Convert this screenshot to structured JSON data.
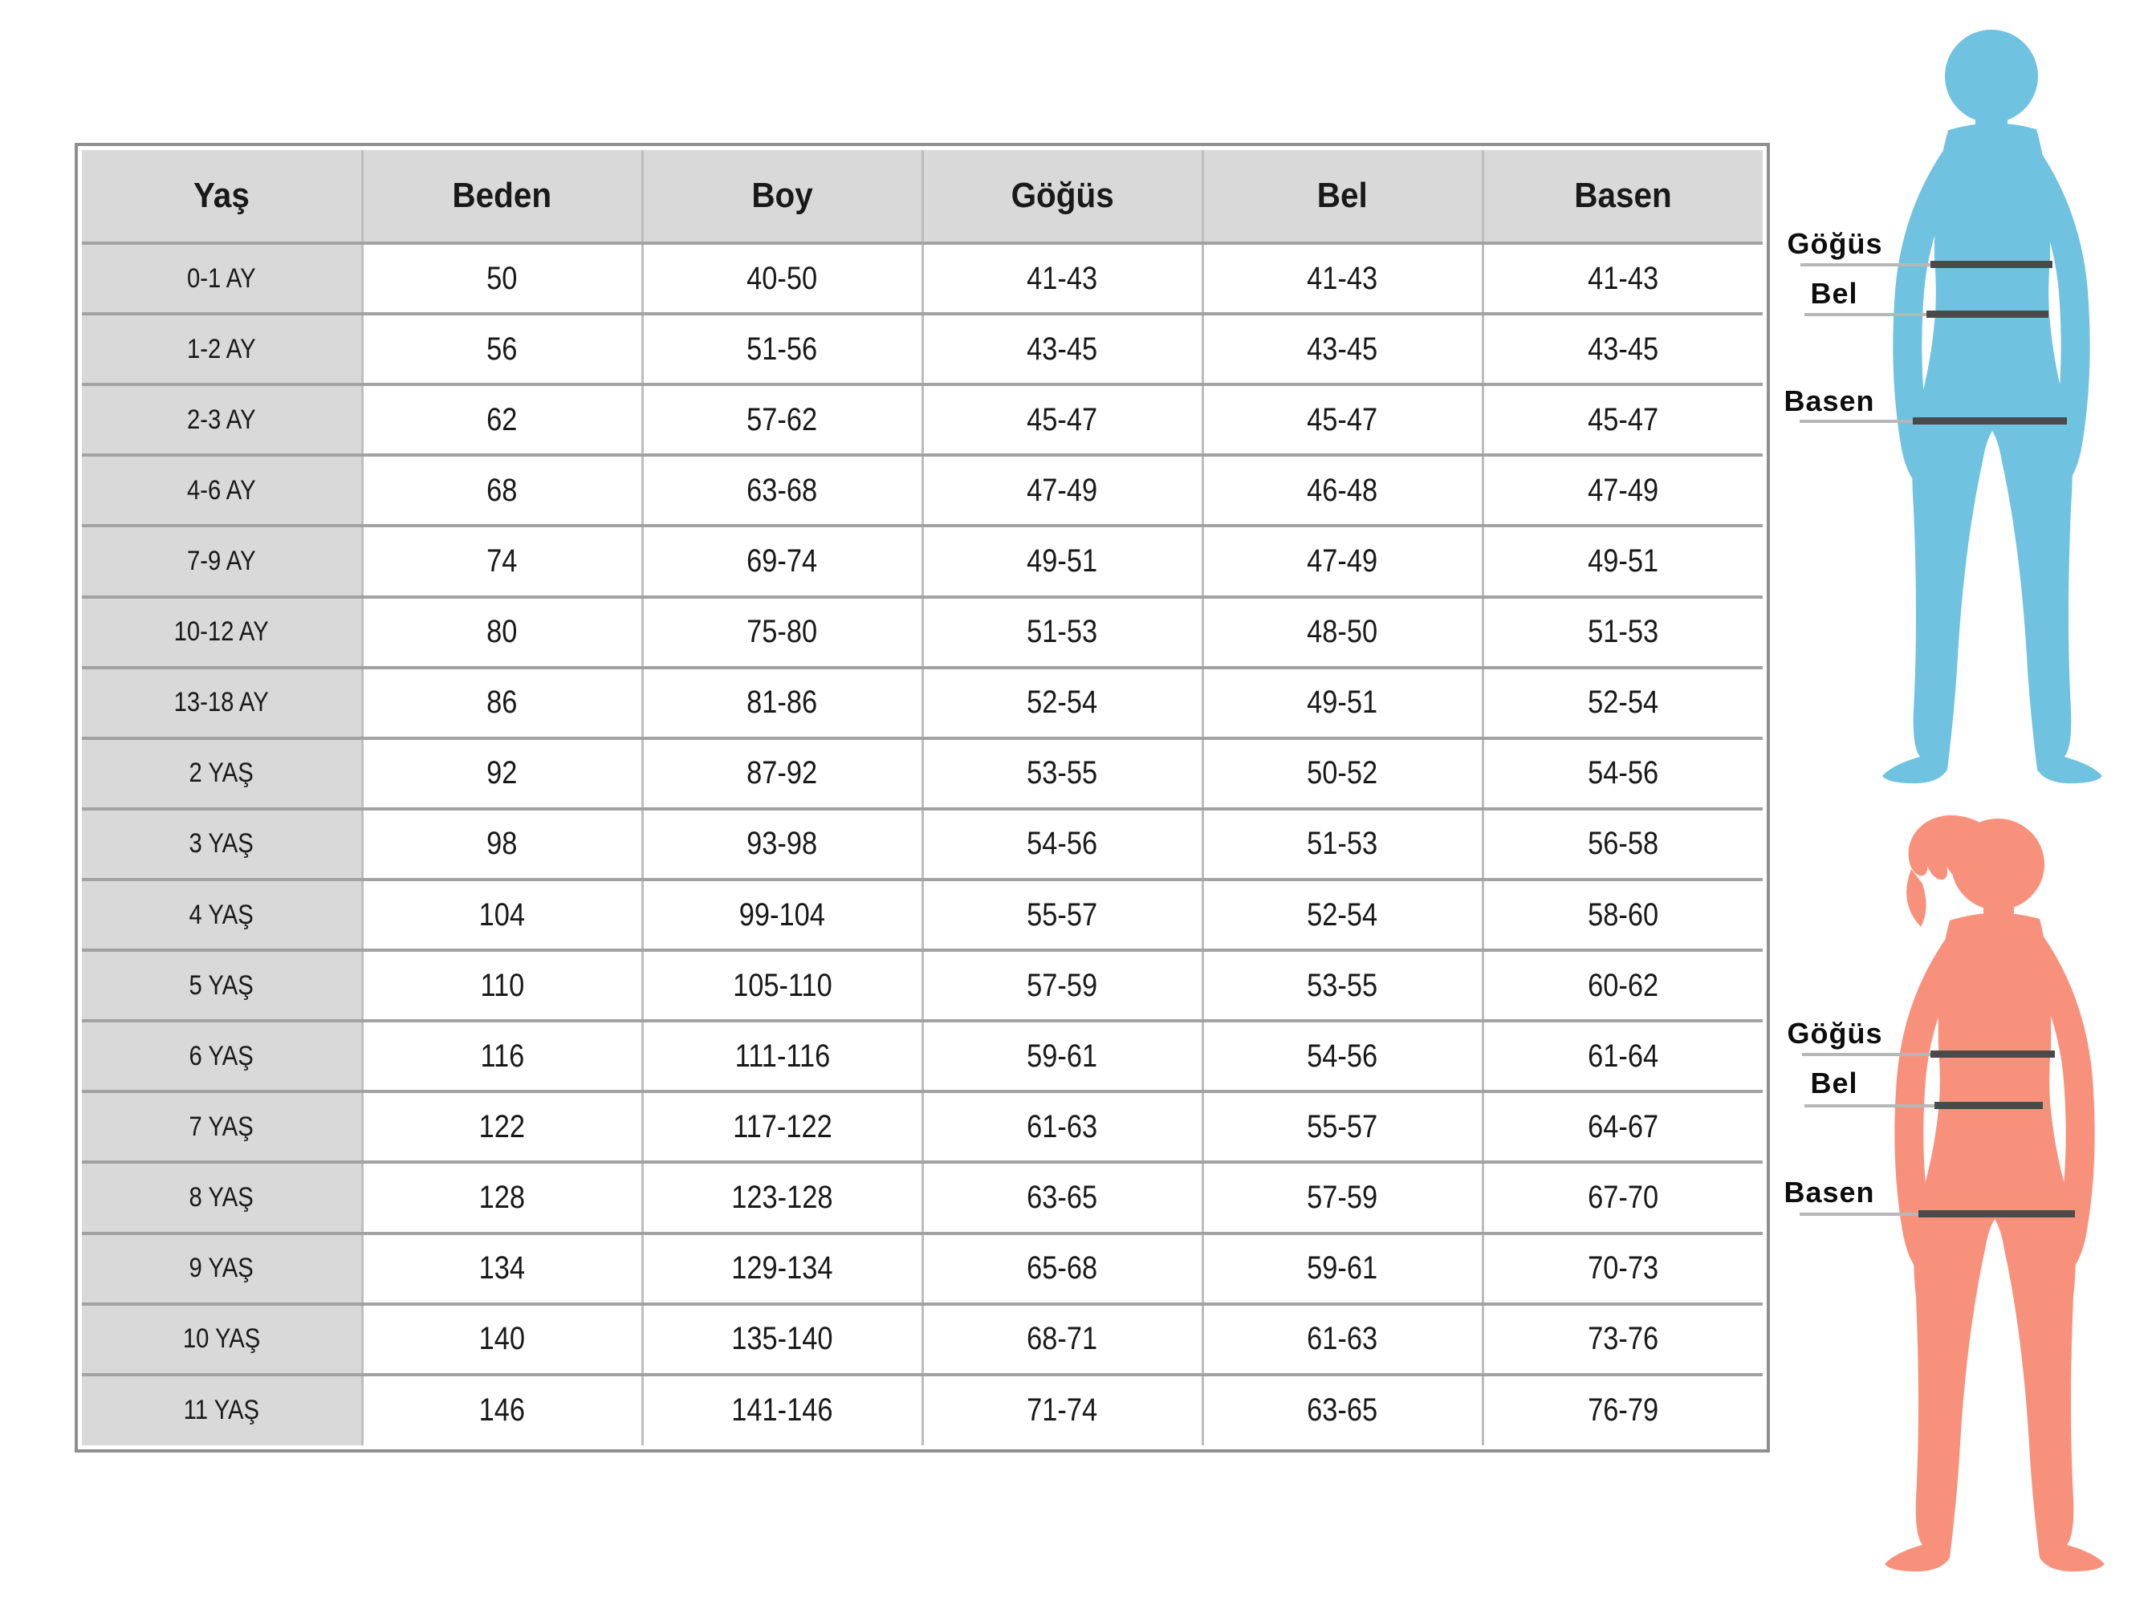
{
  "table": {
    "headers": [
      "Yaş",
      "Beden",
      "Boy",
      "Göğüs",
      "Bel",
      "Basen"
    ],
    "rows": [
      [
        "0-1 AY",
        "50",
        "40-50",
        "41-43",
        "41-43",
        "41-43"
      ],
      [
        "1-2 AY",
        "56",
        "51-56",
        "43-45",
        "43-45",
        "43-45"
      ],
      [
        "2-3 AY",
        "62",
        "57-62",
        "45-47",
        "45-47",
        "45-47"
      ],
      [
        "4-6 AY",
        "68",
        "63-68",
        "47-49",
        "46-48",
        "47-49"
      ],
      [
        "7-9 AY",
        "74",
        "69-74",
        "49-51",
        "47-49",
        "49-51"
      ],
      [
        "10-12 AY",
        "80",
        "75-80",
        "51-53",
        "48-50",
        "51-53"
      ],
      [
        "13-18 AY",
        "86",
        "81-86",
        "52-54",
        "49-51",
        "52-54"
      ],
      [
        "2 YAŞ",
        "92",
        "87-92",
        "53-55",
        "50-52",
        "54-56"
      ],
      [
        "3 YAŞ",
        "98",
        "93-98",
        "54-56",
        "51-53",
        "56-58"
      ],
      [
        "4 YAŞ",
        "104",
        "99-104",
        "55-57",
        "52-54",
        "58-60"
      ],
      [
        "5 YAŞ",
        "110",
        "105-110",
        "57-59",
        "53-55",
        "60-62"
      ],
      [
        "6 YAŞ",
        "116",
        "111-116",
        "59-61",
        "54-56",
        "61-64"
      ],
      [
        "7 YAŞ",
        "122",
        "117-122",
        "61-63",
        "55-57",
        "64-67"
      ],
      [
        "8 YAŞ",
        "128",
        "123-128",
        "63-65",
        "57-59",
        "67-70"
      ],
      [
        "9 YAŞ",
        "134",
        "129-134",
        "65-68",
        "59-61",
        "70-73"
      ],
      [
        "10 YAŞ",
        "140",
        "135-140",
        "68-71",
        "61-63",
        "73-76"
      ],
      [
        "11 YAŞ",
        "146",
        "141-146",
        "71-74",
        "63-65",
        "76-79"
      ]
    ]
  },
  "chart_data": {
    "type": "table",
    "title": "",
    "columns": [
      "Yaş",
      "Beden",
      "Boy",
      "Göğüs",
      "Bel",
      "Basen"
    ],
    "rows": [
      [
        "0-1 AY",
        "50",
        "40-50",
        "41-43",
        "41-43",
        "41-43"
      ],
      [
        "1-2 AY",
        "56",
        "51-56",
        "43-45",
        "43-45",
        "43-45"
      ],
      [
        "2-3 AY",
        "62",
        "57-62",
        "45-47",
        "45-47",
        "45-47"
      ],
      [
        "4-6 AY",
        "68",
        "63-68",
        "47-49",
        "46-48",
        "47-49"
      ],
      [
        "7-9 AY",
        "74",
        "69-74",
        "49-51",
        "47-49",
        "49-51"
      ],
      [
        "10-12 AY",
        "80",
        "75-80",
        "51-53",
        "48-50",
        "51-53"
      ],
      [
        "13-18 AY",
        "86",
        "81-86",
        "52-54",
        "49-51",
        "52-54"
      ],
      [
        "2 YAŞ",
        "92",
        "87-92",
        "53-55",
        "50-52",
        "54-56"
      ],
      [
        "3 YAŞ",
        "98",
        "93-98",
        "54-56",
        "51-53",
        "56-58"
      ],
      [
        "4 YAŞ",
        "104",
        "99-104",
        "55-57",
        "52-54",
        "58-60"
      ],
      [
        "5 YAŞ",
        "110",
        "105-110",
        "57-59",
        "53-55",
        "60-62"
      ],
      [
        "6 YAŞ",
        "116",
        "111-116",
        "59-61",
        "54-56",
        "61-64"
      ],
      [
        "7 YAŞ",
        "122",
        "117-122",
        "61-63",
        "55-57",
        "64-67"
      ],
      [
        "8 YAŞ",
        "128",
        "123-128",
        "63-65",
        "57-59",
        "67-70"
      ],
      [
        "9 YAŞ",
        "134",
        "129-134",
        "65-68",
        "59-61",
        "70-73"
      ],
      [
        "10 YAŞ",
        "140",
        "135-140",
        "68-71",
        "61-63",
        "73-76"
      ],
      [
        "11 YAŞ",
        "146",
        "141-146",
        "71-74",
        "63-65",
        "76-79"
      ]
    ]
  },
  "diagram": {
    "boy": {
      "color": "#6fc2e0",
      "labels": {
        "chest": "Göğüs",
        "waist": "Bel",
        "hips": "Basen"
      }
    },
    "girl": {
      "color": "#f8917c",
      "labels": {
        "chest": "Göğüs",
        "waist": "Bel",
        "hips": "Basen"
      }
    }
  },
  "colors": {
    "header_bg": "#d9d9d9",
    "dark_line": "#4a4a4a",
    "light_line": "#b7b7b7",
    "boy_silhouette": "#6fc2e0",
    "girl_silhouette": "#f8917c"
  }
}
